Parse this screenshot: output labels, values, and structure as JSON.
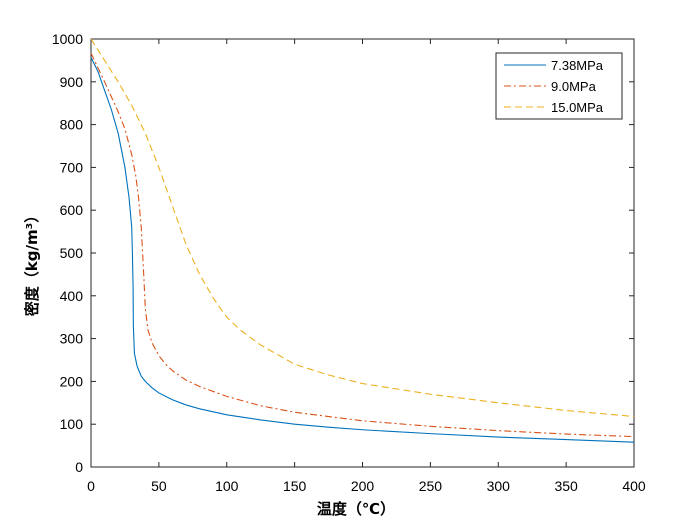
{
  "chart_data": {
    "type": "line",
    "xlabel": "温度（℃）",
    "ylabel": "密度（kg/m³）",
    "xlim": [
      0,
      400
    ],
    "ylim": [
      0,
      1000
    ],
    "xticks": [
      0,
      50,
      100,
      150,
      200,
      250,
      300,
      350,
      400
    ],
    "yticks": [
      0,
      100,
      200,
      300,
      400,
      500,
      600,
      700,
      800,
      900,
      1000
    ],
    "grid": false,
    "legend_position": "top-right",
    "series": [
      {
        "name": "7.38MPa",
        "color": "#0072BD",
        "style": "solid",
        "x": [
          0,
          5,
          10,
          15,
          20,
          25,
          28,
          30,
          30.5,
          31,
          31.2,
          32,
          34,
          37,
          40,
          45,
          50,
          60,
          70,
          80,
          100,
          125,
          150,
          175,
          200,
          250,
          300,
          350,
          400
        ],
        "y": [
          957,
          925,
          880,
          835,
          780,
          700,
          630,
          560,
          500,
          420,
          330,
          265,
          235,
          212,
          200,
          185,
          173,
          157,
          145,
          136,
          122,
          110,
          100,
          93,
          87,
          78,
          70,
          64,
          58
        ]
      },
      {
        "name": "9.0MPa",
        "color": "#D95319",
        "style": "dashdot",
        "x": [
          0,
          10,
          20,
          25,
          30,
          33,
          35,
          37,
          38,
          39,
          40,
          42,
          45,
          50,
          55,
          60,
          70,
          80,
          100,
          125,
          150,
          200,
          250,
          300,
          350,
          400
        ],
        "y": [
          967,
          900,
          830,
          790,
          730,
          680,
          630,
          560,
          500,
          440,
          370,
          320,
          290,
          260,
          240,
          225,
          203,
          188,
          165,
          143,
          128,
          108,
          95,
          85,
          77,
          71
        ]
      },
      {
        "name": "15.0MPa",
        "color": "#EDB120",
        "style": "dash",
        "x": [
          0,
          10,
          20,
          30,
          40,
          45,
          50,
          55,
          60,
          65,
          70,
          80,
          90,
          100,
          110,
          125,
          150,
          175,
          200,
          250,
          300,
          350,
          400
        ],
        "y": [
          1000,
          950,
          900,
          845,
          780,
          740,
          700,
          655,
          610,
          565,
          520,
          450,
          395,
          350,
          320,
          285,
          240,
          215,
          195,
          170,
          150,
          132,
          118
        ]
      }
    ]
  }
}
